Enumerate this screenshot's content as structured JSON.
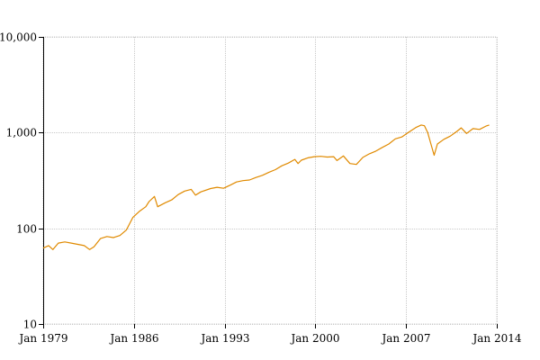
{
  "chart_data": {
    "type": "line",
    "title": "",
    "xlabel": "",
    "ylabel": "",
    "x_axis": {
      "type": "date",
      "range": [
        "1979-01",
        "2014-01"
      ],
      "ticks": [
        {
          "value": "1979-01",
          "label": "Jan 1979"
        },
        {
          "value": "1986-01",
          "label": "Jan 1986"
        },
        {
          "value": "1993-01",
          "label": "Jan 1993"
        },
        {
          "value": "2000-01",
          "label": "Jan 2000"
        },
        {
          "value": "2007-01",
          "label": "Jan 2007"
        },
        {
          "value": "2014-01",
          "label": "Jan 2014"
        }
      ]
    },
    "y_axis": {
      "scale": "log",
      "range": [
        10,
        10000
      ],
      "ticks": [
        {
          "value": 10,
          "label": "10"
        },
        {
          "value": 100,
          "label": "100"
        },
        {
          "value": 1000,
          "label": "1,000"
        },
        {
          "value": 10000,
          "label": "10,000"
        }
      ]
    },
    "grid": true,
    "series": [
      {
        "color": "#e08a00",
        "points": [
          [
            "1979-01",
            62
          ],
          [
            "1979-06",
            66
          ],
          [
            "1979-10",
            60
          ],
          [
            "1980-03",
            70
          ],
          [
            "1980-09",
            72
          ],
          [
            "1981-03",
            70
          ],
          [
            "1981-09",
            68
          ],
          [
            "1982-03",
            66
          ],
          [
            "1982-08",
            60
          ],
          [
            "1982-12",
            64
          ],
          [
            "1983-06",
            78
          ],
          [
            "1983-12",
            82
          ],
          [
            "1984-06",
            80
          ],
          [
            "1984-12",
            84
          ],
          [
            "1985-06",
            96
          ],
          [
            "1985-12",
            130
          ],
          [
            "1986-06",
            150
          ],
          [
            "1986-12",
            168
          ],
          [
            "1987-03",
            190
          ],
          [
            "1987-08",
            215
          ],
          [
            "1987-11",
            168
          ],
          [
            "1988-06",
            185
          ],
          [
            "1988-12",
            198
          ],
          [
            "1989-06",
            225
          ],
          [
            "1989-12",
            245
          ],
          [
            "1990-06",
            255
          ],
          [
            "1990-10",
            222
          ],
          [
            "1991-03",
            240
          ],
          [
            "1991-12",
            260
          ],
          [
            "1992-06",
            268
          ],
          [
            "1992-12",
            262
          ],
          [
            "1993-06",
            282
          ],
          [
            "1993-12",
            305
          ],
          [
            "1994-06",
            315
          ],
          [
            "1994-12",
            320
          ],
          [
            "1995-06",
            340
          ],
          [
            "1995-12",
            358
          ],
          [
            "1996-06",
            385
          ],
          [
            "1996-12",
            410
          ],
          [
            "1997-06",
            450
          ],
          [
            "1997-12",
            480
          ],
          [
            "1998-06",
            525
          ],
          [
            "1998-09",
            475
          ],
          [
            "1998-12",
            515
          ],
          [
            "1999-06",
            545
          ],
          [
            "1999-12",
            560
          ],
          [
            "2000-06",
            565
          ],
          [
            "2000-12",
            555
          ],
          [
            "2001-06",
            560
          ],
          [
            "2001-09",
            510
          ],
          [
            "2002-03",
            570
          ],
          [
            "2002-09",
            475
          ],
          [
            "2003-03",
            465
          ],
          [
            "2003-09",
            550
          ],
          [
            "2004-03",
            600
          ],
          [
            "2004-09",
            640
          ],
          [
            "2005-03",
            700
          ],
          [
            "2005-09",
            760
          ],
          [
            "2006-03",
            860
          ],
          [
            "2006-09",
            900
          ],
          [
            "2007-03",
            1000
          ],
          [
            "2007-10",
            1130
          ],
          [
            "2008-03",
            1200
          ],
          [
            "2008-06",
            1180
          ],
          [
            "2008-09",
            1000
          ],
          [
            "2008-12",
            760
          ],
          [
            "2009-03",
            580
          ],
          [
            "2009-06",
            760
          ],
          [
            "2009-12",
            850
          ],
          [
            "2010-06",
            920
          ],
          [
            "2010-12",
            1030
          ],
          [
            "2011-04",
            1120
          ],
          [
            "2011-09",
            980
          ],
          [
            "2012-03",
            1100
          ],
          [
            "2012-09",
            1080
          ],
          [
            "2013-03",
            1170
          ],
          [
            "2013-06",
            1200
          ]
        ]
      }
    ]
  }
}
